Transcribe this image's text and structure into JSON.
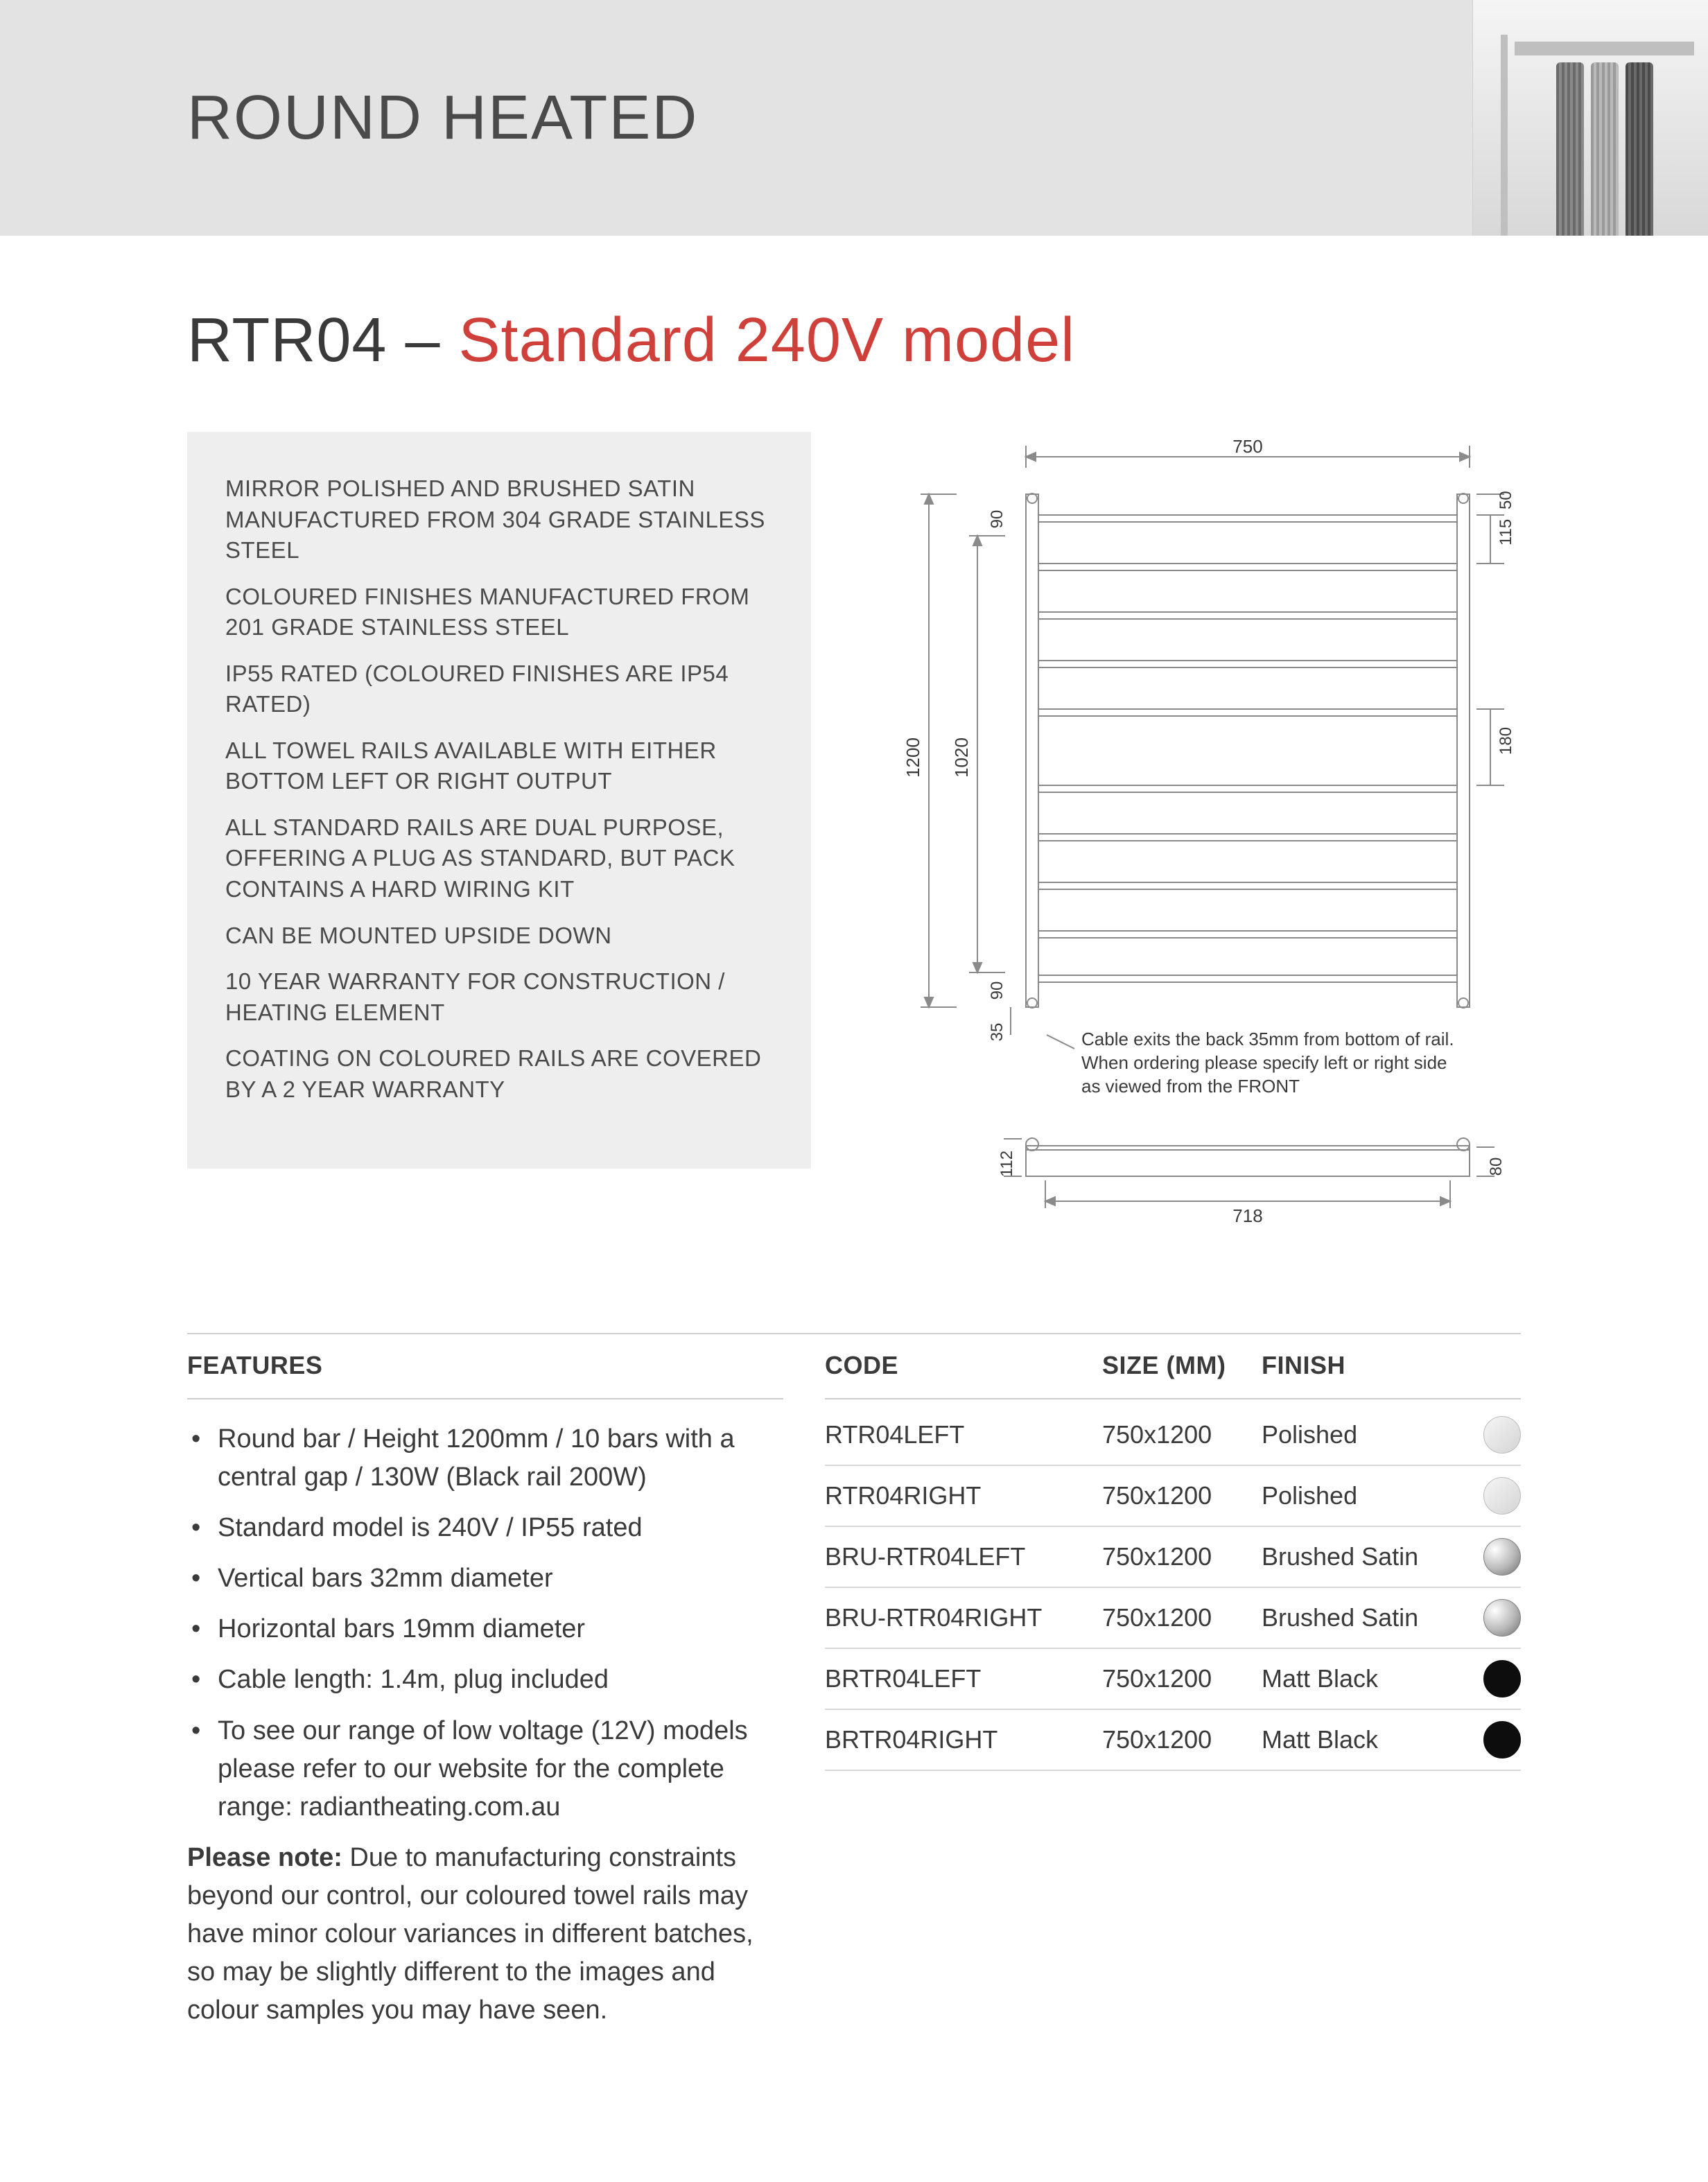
{
  "header": {
    "category": "ROUND HEATED"
  },
  "product": {
    "code": "RTR04",
    "separator": " – ",
    "subtitle": "Standard 240V model",
    "code_color": "#3a3a3a",
    "subtitle_color": "#d0403a",
    "title_fontsize": 90
  },
  "spec_box": {
    "bg": "#eeeeee",
    "items": [
      "MIRROR POLISHED AND BRUSHED SATIN MANUFACTURED FROM 304 GRADE STAINLESS STEEL",
      "COLOURED FINISHES MANUFACTURED FROM 201 GRADE STAINLESS STEEL",
      "IP55 RATED (COLOURED FINISHES ARE IP54 RATED)",
      "ALL TOWEL RAILS AVAILABLE WITH EITHER BOTTOM LEFT OR RIGHT OUTPUT",
      "ALL STANDARD RAILS ARE DUAL PURPOSE, OFFERING A PLUG AS STANDARD, BUT PACK CONTAINS A HARD WIRING KIT",
      "CAN BE MOUNTED UPSIDE DOWN",
      "10 YEAR WARRANTY FOR CONSTRUCTION / HEATING ELEMENT",
      "COATING ON COLOURED RAILS ARE COVERED BY A 2 YEAR WARRANTY"
    ]
  },
  "diagram": {
    "stroke": "#8a8a8a",
    "dim_color": "#3a3a3a",
    "front": {
      "width_label": "750",
      "height_total": "1200",
      "height_inner": "1020",
      "top_offset": "90",
      "bottom_offset": "90",
      "right_top_small": "50",
      "right_top_gap": "115",
      "right_mid_gap": "180",
      "cable_exit": "35",
      "bar_count": 10
    },
    "side": {
      "width_label": "718",
      "depth_label": "112",
      "right_label": "80"
    },
    "note": "Cable exits the back 35mm from bottom of rail. When ordering please specify left or right side as viewed from the FRONT"
  },
  "sections": {
    "features_label": "FEATURES",
    "code_label": "CODE",
    "size_label": "SIZE (MM)",
    "finish_label": "FINISH"
  },
  "features_bullets": [
    "Round bar / Height 1200mm / 10 bars with a central gap / 130W (Black rail 200W)",
    "Standard model is 240V / IP55 rated",
    "Vertical bars 32mm diameter",
    "Horizontal bars 19mm diameter",
    "Cable length: 1.4m, plug included",
    "To see our range of low voltage (12V) models please refer to our website for the complete range: radiantheating.com.au"
  ],
  "note_label": "Please note:",
  "note_text": " Due to manufacturing constraints beyond our control, our coloured towel rails may have minor colour variances in different batches, so may be slightly different to the images and colour samples you may have seen.",
  "swatches": {
    "polished": {
      "bg": "linear-gradient(135deg,#f6f6f6,#d4d4d4)",
      "border": "#bcbcbc"
    },
    "brushed_satin": {
      "bg": "radial-gradient(circle at 30% 30%,#ffffff 0%,#b9b9b9 55%,#6f6f6f 100%)",
      "border": "#808080"
    },
    "matt_black": {
      "bg": "#0d0d0d",
      "border": "#0d0d0d"
    }
  },
  "skus": [
    {
      "code": "RTR04LEFT",
      "size": "750x1200",
      "finish": "Polished",
      "swatch": "polished"
    },
    {
      "code": "RTR04RIGHT",
      "size": "750x1200",
      "finish": "Polished",
      "swatch": "polished"
    },
    {
      "code": "BRU-RTR04LEFT",
      "size": "750x1200",
      "finish": "Brushed Satin",
      "swatch": "brushed_satin"
    },
    {
      "code": "BRU-RTR04RIGHT",
      "size": "750x1200",
      "finish": "Brushed Satin",
      "swatch": "brushed_satin"
    },
    {
      "code": "BRTR04LEFT",
      "size": "750x1200",
      "finish": "Matt Black",
      "swatch": "matt_black"
    },
    {
      "code": "BRTR04RIGHT",
      "size": "750x1200",
      "finish": "Matt Black",
      "swatch": "matt_black"
    }
  ]
}
